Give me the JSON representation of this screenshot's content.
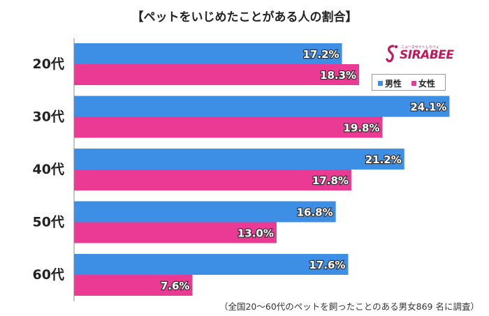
{
  "title": "【ペットをいじめたことがある人の割合】",
  "note": "（全国20～60代のペットを飼ったことのある男女869 名に調査）",
  "logo": {
    "text": "SIRABEE",
    "subtext": "ニュースサイトしらべぇ"
  },
  "colors": {
    "male": "#3d8fe6",
    "female": "#ea3a93",
    "axis": "#888888"
  },
  "legend": {
    "male": "男性",
    "female": "女性"
  },
  "chart_data": {
    "type": "bar",
    "orientation": "horizontal",
    "categories": [
      "20代",
      "30代",
      "40代",
      "50代",
      "60代"
    ],
    "series": [
      {
        "name": "男性",
        "values": [
          17.2,
          24.1,
          21.2,
          16.8,
          17.6
        ],
        "labels": [
          "17.2%",
          "24.1%",
          "21.2%",
          "16.8%",
          "17.6%"
        ]
      },
      {
        "name": "女性",
        "values": [
          18.3,
          19.8,
          17.8,
          13.0,
          7.6
        ],
        "labels": [
          "18.3%",
          "19.8%",
          "17.8%",
          "13.0%",
          "7.6%"
        ]
      }
    ],
    "xlim": [
      0,
      25
    ],
    "legend_position": "top-right",
    "grid": false
  }
}
